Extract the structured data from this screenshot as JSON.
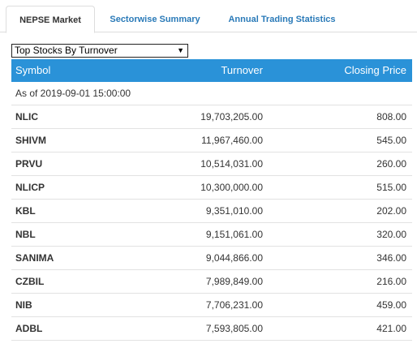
{
  "tabs": [
    {
      "label": "NEPSE Market",
      "active": true
    },
    {
      "label": "Sectorwise Summary",
      "active": false
    },
    {
      "label": "Annual Trading Statistics",
      "active": false
    }
  ],
  "dropdown": {
    "selected": "Top Stocks By Turnover",
    "arrow_icon": "▼"
  },
  "table": {
    "headers": {
      "symbol": "Symbol",
      "turnover": "Turnover",
      "closing_price": "Closing Price"
    },
    "as_of": "As of 2019-09-01 15:00:00",
    "rows": [
      {
        "symbol": "NLIC",
        "turnover": "19,703,205.00",
        "closing_price": "808.00"
      },
      {
        "symbol": "SHIVM",
        "turnover": "11,967,460.00",
        "closing_price": "545.00"
      },
      {
        "symbol": "PRVU",
        "turnover": "10,514,031.00",
        "closing_price": "260.00"
      },
      {
        "symbol": "NLICP",
        "turnover": "10,300,000.00",
        "closing_price": "515.00"
      },
      {
        "symbol": "KBL",
        "turnover": "9,351,010.00",
        "closing_price": "202.00"
      },
      {
        "symbol": "NBL",
        "turnover": "9,151,061.00",
        "closing_price": "320.00"
      },
      {
        "symbol": "SANIMA",
        "turnover": "9,044,866.00",
        "closing_price": "346.00"
      },
      {
        "symbol": "CZBIL",
        "turnover": "7,989,849.00",
        "closing_price": "216.00"
      },
      {
        "symbol": "NIB",
        "turnover": "7,706,231.00",
        "closing_price": "459.00"
      },
      {
        "symbol": "ADBL",
        "turnover": "7,593,805.00",
        "closing_price": "421.00"
      }
    ]
  },
  "colors": {
    "header_bg": "#2a92d8",
    "tab_link": "#2a7ab8"
  }
}
